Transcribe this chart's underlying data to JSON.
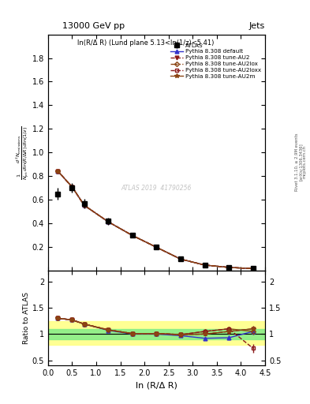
{
  "title_left": "13000 GeV pp",
  "title_right": "Jets",
  "ylabel_main": "$\\frac{1}{N_{\\rm jet}}\\frac{d^2 N_{\\rm emissions}}{d\\ln(R/\\Delta R)\\, d\\ln(1/z)}$",
  "ylabel_ratio": "Ratio to ATLAS",
  "xlabel": "ln (R/Δ R)",
  "annotation": "ln(R/Δ R) (Lund plane 5.13<ln(1/z)<5.41)",
  "watermark": "ATLAS 2019  41790256",
  "rivet_label": "Rivet 3.1.10, ≥ 2.9M events",
  "arxiv_label": "[arXiv:1306.3436]",
  "mcplots_label": "mcplots.cern.ch",
  "x": [
    0.2,
    0.5,
    0.75,
    1.25,
    1.75,
    2.25,
    2.75,
    3.25,
    3.75,
    4.25
  ],
  "atlas_y": [
    0.65,
    0.7,
    0.57,
    0.42,
    0.3,
    0.2,
    0.1,
    0.05,
    0.03,
    0.02
  ],
  "atlas_yerr": [
    0.05,
    0.04,
    0.04,
    0.03,
    0.02,
    0.015,
    0.01,
    0.008,
    0.005,
    0.005
  ],
  "default_y": [
    0.845,
    0.71,
    0.555,
    0.415,
    0.3,
    0.2,
    0.1,
    0.05,
    0.03,
    0.02
  ],
  "au2_y": [
    0.845,
    0.71,
    0.555,
    0.415,
    0.3,
    0.2,
    0.1,
    0.05,
    0.03,
    0.02
  ],
  "au2lox_y": [
    0.845,
    0.71,
    0.555,
    0.415,
    0.3,
    0.2,
    0.1,
    0.05,
    0.03,
    0.02
  ],
  "au2loxx_y": [
    0.845,
    0.71,
    0.555,
    0.415,
    0.3,
    0.2,
    0.1,
    0.05,
    0.03,
    0.02
  ],
  "au2m_y": [
    0.845,
    0.71,
    0.555,
    0.415,
    0.3,
    0.2,
    0.1,
    0.05,
    0.03,
    0.02
  ],
  "ratio_default": [
    1.3,
    1.27,
    1.19,
    1.07,
    1.0,
    1.0,
    0.97,
    0.92,
    0.93,
    1.05
  ],
  "ratio_au2": [
    1.3,
    1.27,
    1.19,
    1.08,
    1.01,
    1.01,
    0.99,
    1.0,
    1.05,
    1.1
  ],
  "ratio_au2lox": [
    1.3,
    1.27,
    1.19,
    1.08,
    1.01,
    1.01,
    0.99,
    1.05,
    1.1,
    1.05
  ],
  "ratio_au2loxx": [
    1.3,
    1.27,
    1.19,
    1.08,
    1.01,
    1.01,
    0.99,
    1.05,
    1.1,
    0.73
  ],
  "ratio_au2m": [
    1.3,
    1.27,
    1.19,
    1.08,
    1.01,
    1.01,
    0.99,
    1.0,
    1.05,
    1.1
  ],
  "ratio_default_err": [
    0.04,
    0.03,
    0.02,
    0.02,
    0.015,
    0.015,
    0.02,
    0.03,
    0.04,
    0.06
  ],
  "ratio_au2_err": [
    0.04,
    0.03,
    0.02,
    0.02,
    0.015,
    0.015,
    0.02,
    0.03,
    0.04,
    0.06
  ],
  "ratio_au2lox_err": [
    0.04,
    0.03,
    0.02,
    0.02,
    0.015,
    0.015,
    0.02,
    0.03,
    0.04,
    0.06
  ],
  "ratio_au2loxx_err": [
    0.04,
    0.03,
    0.02,
    0.02,
    0.015,
    0.015,
    0.02,
    0.03,
    0.04,
    0.08
  ],
  "ratio_au2m_err": [
    0.04,
    0.03,
    0.02,
    0.02,
    0.015,
    0.015,
    0.02,
    0.03,
    0.04,
    0.06
  ],
  "color_default": "#3333cc",
  "color_au2": "#8B1a1a",
  "color_au2lox": "#8B4513",
  "color_au2loxx": "#8B1a1a",
  "color_au2m": "#8B4513",
  "xlim": [
    0.0,
    4.5
  ],
  "ylim_main": [
    0.0,
    2.0
  ],
  "ylim_ratio": [
    0.4,
    2.2
  ]
}
